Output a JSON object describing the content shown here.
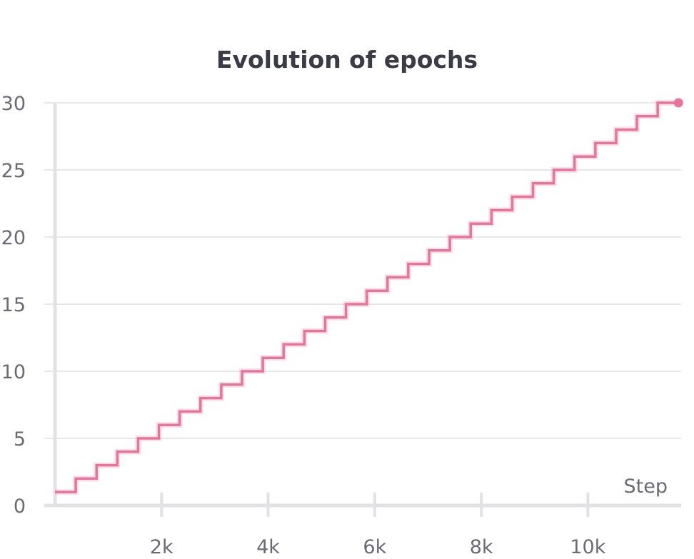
{
  "chart_data": {
    "type": "line",
    "title": "Evolution of epochs",
    "xlabel": "Step",
    "ylabel": "",
    "xlim": [
      0,
      11750
    ],
    "ylim": [
      0,
      30
    ],
    "x_ticks": [
      {
        "value": 2000,
        "label": "2k"
      },
      {
        "value": 4000,
        "label": "4k"
      },
      {
        "value": 6000,
        "label": "6k"
      },
      {
        "value": 8000,
        "label": "8k"
      },
      {
        "value": 10000,
        "label": "10k"
      }
    ],
    "y_ticks": [
      {
        "value": 0,
        "label": "0"
      },
      {
        "value": 5,
        "label": "5"
      },
      {
        "value": 10,
        "label": "10"
      },
      {
        "value": 15,
        "label": "15"
      },
      {
        "value": 20,
        "label": "20"
      },
      {
        "value": 25,
        "label": "25"
      },
      {
        "value": 30,
        "label": "30"
      }
    ],
    "grid": true,
    "line_style": "step",
    "series": [
      {
        "color": "#e8739c",
        "points": [
          [
            0,
            1
          ],
          [
            390,
            2
          ],
          [
            780,
            3
          ],
          [
            1170,
            4
          ],
          [
            1560,
            5
          ],
          [
            1950,
            6
          ],
          [
            2340,
            7
          ],
          [
            2730,
            8
          ],
          [
            3120,
            9
          ],
          [
            3510,
            10
          ],
          [
            3900,
            11
          ],
          [
            4290,
            12
          ],
          [
            4680,
            13
          ],
          [
            5070,
            14
          ],
          [
            5460,
            15
          ],
          [
            5850,
            16
          ],
          [
            6240,
            17
          ],
          [
            6630,
            18
          ],
          [
            7020,
            19
          ],
          [
            7410,
            20
          ],
          [
            7800,
            21
          ],
          [
            8190,
            22
          ],
          [
            8580,
            23
          ],
          [
            8970,
            24
          ],
          [
            9360,
            25
          ],
          [
            9750,
            26
          ],
          [
            10140,
            27
          ],
          [
            10530,
            28
          ],
          [
            10920,
            29
          ],
          [
            11310,
            30
          ],
          [
            11700,
            30
          ]
        ]
      }
    ]
  }
}
